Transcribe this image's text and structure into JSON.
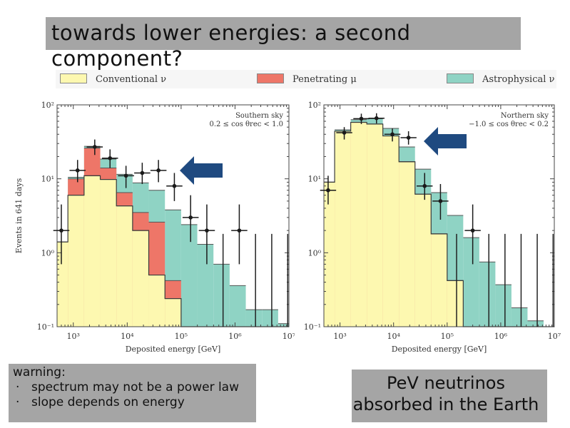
{
  "slide": {
    "title": "towards lower energies: a second component?",
    "warning_title": "warning:",
    "warning_bullets": [
      "spectrum may not be a power law",
      "slope depends on energy"
    ],
    "bullet_glyph": "·",
    "callout": "PeV neutrinos absorbed in the Earth"
  },
  "legend": [
    {
      "label": "Conventional ν",
      "color": "#fdf8b0"
    },
    {
      "label": "Penetrating μ",
      "color": "#ee7668"
    },
    {
      "label": "Astrophysical ν",
      "color": "#8fd3c4"
    }
  ],
  "colors": {
    "arrow": "#1f4a80",
    "data_points": "#1a1a1a"
  },
  "chart_data": [
    {
      "type": "area",
      "title": "Southern sky",
      "annotation": [
        "Southern sky",
        "0.2 ≤ cos θrec < 1.0"
      ],
      "xlabel": "Deposited energy [GeV]",
      "ylabel": "Events in 641 days",
      "xscale": "log",
      "yscale": "log",
      "xlim": [
        500,
        10000000
      ],
      "ylim": [
        0.1,
        100
      ],
      "xticks": [
        "10³",
        "10⁴",
        "10⁵",
        "10⁶",
        "10⁷"
      ],
      "yticks": [
        "10⁻¹",
        "10⁰",
        "10¹",
        "10²"
      ],
      "bin_edges": [
        500,
        794,
        1585,
        3162,
        6310,
        12589,
        25119,
        50119,
        100000,
        199526,
        398107,
        794328,
        1584893,
        3162278,
        6309573,
        10000000
      ],
      "series": [
        {
          "name": "Conventional ν",
          "values": [
            1.4,
            6.0,
            11.0,
            9.8,
            4.3,
            2.0,
            0.5,
            0.24,
            0.1,
            0.1,
            0.1,
            0.1,
            0.1,
            0.1,
            0.1
          ]
        },
        {
          "name": "Penetrating μ",
          "values": [
            1.4,
            10.0,
            26.0,
            14.0,
            6.5,
            3.5,
            2.6,
            0.42,
            0.1,
            0.1,
            0.1,
            0.1,
            0.1,
            0.1,
            0.1
          ]
        },
        {
          "name": "Astrophysical ν",
          "values": [
            1.4,
            10.5,
            27.5,
            18.5,
            11.5,
            8.8,
            7.0,
            3.8,
            2.4,
            1.3,
            0.7,
            0.36,
            0.17,
            0.17,
            0.11
          ]
        }
      ],
      "data_points": [
        {
          "x": 600,
          "y": 2,
          "lo": 0.7,
          "hi": 4.5
        },
        {
          "x": 1200,
          "y": 13,
          "lo": 9,
          "hi": 18
        },
        {
          "x": 2500,
          "y": 27,
          "lo": 21,
          "hi": 34
        },
        {
          "x": 4800,
          "y": 19,
          "lo": 14,
          "hi": 25
        },
        {
          "x": 9500,
          "y": 11,
          "lo": 7.5,
          "hi": 15
        },
        {
          "x": 19000,
          "y": 12,
          "lo": 8.5,
          "hi": 16.5
        },
        {
          "x": 38000,
          "y": 13,
          "lo": 9,
          "hi": 18
        },
        {
          "x": 75000,
          "y": 8,
          "lo": 5,
          "hi": 12
        },
        {
          "x": 150000,
          "y": 3,
          "lo": 1.4,
          "hi": 6
        },
        {
          "x": 300000,
          "y": 2,
          "lo": 0.7,
          "hi": 4.5
        },
        {
          "x": 1200000,
          "y": 2,
          "lo": 0.7,
          "hi": 4.5
        }
      ],
      "upper_limits": [
        600000,
        2400000,
        4800000,
        9500000
      ],
      "upper_limit_value": 1.8
    },
    {
      "type": "area",
      "title": "Northern sky",
      "annotation": [
        "Northern sky",
        "−1.0 ≤ cos θrec < 0.2"
      ],
      "xlabel": "Deposited energy [GeV]",
      "ylabel": "",
      "xscale": "log",
      "yscale": "log",
      "xlim": [
        500,
        10000000
      ],
      "ylim": [
        0.1,
        100
      ],
      "xticks": [
        "10³",
        "10⁴",
        "10⁵",
        "10⁶",
        "10⁷"
      ],
      "yticks": [
        "10⁻¹",
        "10⁰",
        "10¹",
        "10²"
      ],
      "bin_edges": [
        500,
        794,
        1585,
        3162,
        6310,
        12589,
        25119,
        50119,
        100000,
        199526,
        398107,
        794328,
        1584893,
        3162278,
        6309573,
        10000000
      ],
      "series": [
        {
          "name": "Conventional ν",
          "values": [
            9.0,
            44.0,
            58.0,
            55.0,
            38.0,
            17.0,
            6.2,
            1.8,
            0.42,
            0.1,
            0.1,
            0.1,
            0.1,
            0.1,
            0.1
          ]
        },
        {
          "name": "Penetrating μ",
          "values": [
            9.0,
            44.0,
            58.0,
            55.0,
            38.0,
            17.0,
            6.2,
            1.8,
            0.42,
            0.1,
            0.1,
            0.1,
            0.1,
            0.1,
            0.1
          ]
        },
        {
          "name": "Astrophysical ν",
          "values": [
            9.0,
            46.0,
            63.0,
            65.0,
            48.0,
            27.0,
            13.5,
            6.5,
            3.2,
            1.6,
            0.75,
            0.37,
            0.18,
            0.12,
            0.1
          ]
        }
      ],
      "data_points": [
        {
          "x": 600,
          "y": 7,
          "lo": 4.5,
          "hi": 11
        },
        {
          "x": 1200,
          "y": 42,
          "lo": 34,
          "hi": 50
        },
        {
          "x": 2500,
          "y": 65,
          "lo": 55,
          "hi": 76
        },
        {
          "x": 4800,
          "y": 66,
          "lo": 56,
          "hi": 77
        },
        {
          "x": 9500,
          "y": 40,
          "lo": 32,
          "hi": 48
        },
        {
          "x": 19000,
          "y": 36,
          "lo": 29,
          "hi": 44
        },
        {
          "x": 38000,
          "y": 8,
          "lo": 5.2,
          "hi": 12
        },
        {
          "x": 75000,
          "y": 5,
          "lo": 2.8,
          "hi": 8.5
        },
        {
          "x": 300000,
          "y": 2,
          "lo": 0.7,
          "hi": 4.5
        }
      ],
      "upper_limits": [
        150000,
        600000,
        1200000,
        2400000,
        4800000,
        9500000
      ],
      "upper_limit_value": 1.8
    }
  ]
}
